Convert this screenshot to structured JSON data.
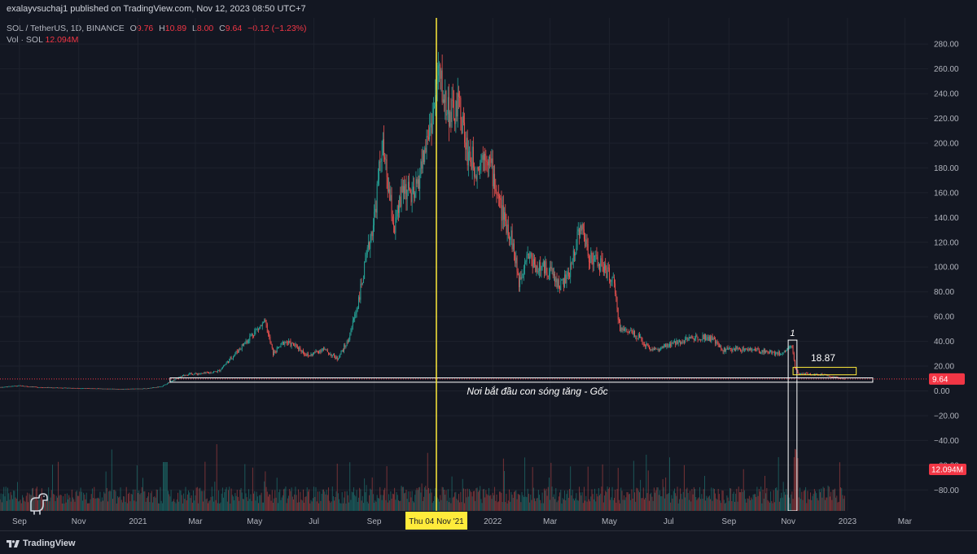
{
  "header": {
    "publisher": "exalayvsuchaj1 published on TradingView.com, Nov 12, 2023 08:50 UTC+7"
  },
  "legend": {
    "symbol": "SOL / TetherUS, 1D, BINANCE",
    "o_label": "O",
    "o_value": "9.76",
    "h_label": "H",
    "h_value": "10.89",
    "l_label": "L",
    "l_value": "8.00",
    "c_label": "C",
    "c_value": "9.64",
    "change": "−0.12 (−1.23%)",
    "vol_label": "Vol · SOL",
    "vol_value": "12.094M"
  },
  "footer": {
    "brand": "TradingView"
  },
  "colors": {
    "background": "#131722",
    "up": "#26a69a",
    "down": "#ef5350",
    "crosshair": "#ffeb3b",
    "box": "#ffffff",
    "price_label": "#f23645"
  },
  "chart_data": {
    "type": "candlestick",
    "y_ticks": [
      "280.00",
      "260.00",
      "240.00",
      "220.00",
      "200.00",
      "180.00",
      "160.00",
      "140.00",
      "120.00",
      "100.00",
      "80.00",
      "60.00",
      "40.00",
      "20.00",
      "0.00",
      "−20.00",
      "−40.00",
      "−60.00",
      "−80.00"
    ],
    "y_tick_values": [
      280,
      260,
      240,
      220,
      200,
      180,
      160,
      140,
      120,
      100,
      80,
      60,
      40,
      20,
      0,
      -20,
      -40,
      -60,
      -80
    ],
    "ylim": [
      -100,
      290
    ],
    "x_ticks": [
      "Sep",
      "Nov",
      "2021",
      "Mar",
      "May",
      "Jul",
      "Sep",
      "2022",
      "Mar",
      "May",
      "Jul",
      "Sep",
      "Nov",
      "2023",
      "Mar"
    ],
    "x_tick_dates": [
      "2020-09-01",
      "2020-11-01",
      "2021-01-01",
      "2021-03-01",
      "2021-05-01",
      "2021-07-01",
      "2021-09-01",
      "2022-01-01",
      "2022-03-01",
      "2022-05-01",
      "2022-07-01",
      "2022-09-01",
      "2022-11-01",
      "2023-01-01",
      "2023-03-01"
    ],
    "x_range": [
      "2020-08-12",
      "2023-03-25"
    ],
    "crosshair_label": "Thu 04 Nov '21",
    "crosshair_date": "2021-11-04",
    "last_price": "9.64",
    "last_price_value": 9.64,
    "last_volume": "12.094M",
    "price_path": [
      [
        "2020-08-12",
        3.0
      ],
      [
        "2020-09-01",
        4.2
      ],
      [
        "2020-09-20",
        3.0
      ],
      [
        "2020-10-15",
        2.5
      ],
      [
        "2020-11-15",
        2.0
      ],
      [
        "2020-12-15",
        1.5
      ],
      [
        "2021-01-10",
        2.0
      ],
      [
        "2021-01-25",
        3.5
      ],
      [
        "2021-02-05",
        8.0
      ],
      [
        "2021-02-20",
        13.5
      ],
      [
        "2021-03-10",
        14.0
      ],
      [
        "2021-03-25",
        16.0
      ],
      [
        "2021-04-05",
        25.0
      ],
      [
        "2021-04-20",
        38.0
      ],
      [
        "2021-05-01",
        48.0
      ],
      [
        "2021-05-12",
        55.0
      ],
      [
        "2021-05-20",
        30.0
      ],
      [
        "2021-06-01",
        40.0
      ],
      [
        "2021-06-15",
        35.0
      ],
      [
        "2021-06-25",
        28.0
      ],
      [
        "2021-07-10",
        34.0
      ],
      [
        "2021-07-25",
        26.0
      ],
      [
        "2021-08-05",
        40.0
      ],
      [
        "2021-08-15",
        70.0
      ],
      [
        "2021-08-25",
        110.0
      ],
      [
        "2021-09-02",
        145.0
      ],
      [
        "2021-09-09",
        200.0
      ],
      [
        "2021-09-15",
        165.0
      ],
      [
        "2021-09-22",
        130.0
      ],
      [
        "2021-10-01",
        165.0
      ],
      [
        "2021-10-12",
        155.0
      ],
      [
        "2021-10-22",
        190.0
      ],
      [
        "2021-11-02",
        230.0
      ],
      [
        "2021-11-06",
        258.0
      ],
      [
        "2021-11-12",
        235.0
      ],
      [
        "2021-11-20",
        222.0
      ],
      [
        "2021-11-28",
        230.0
      ],
      [
        "2021-12-05",
        195.0
      ],
      [
        "2021-12-15",
        180.0
      ],
      [
        "2021-12-25",
        195.0
      ],
      [
        "2022-01-01",
        175.0
      ],
      [
        "2022-01-10",
        145.0
      ],
      [
        "2022-01-20",
        125.0
      ],
      [
        "2022-01-28",
        88.0
      ],
      [
        "2022-02-05",
        112.0
      ],
      [
        "2022-02-15",
        100.0
      ],
      [
        "2022-03-01",
        98.0
      ],
      [
        "2022-03-10",
        85.0
      ],
      [
        "2022-03-20",
        92.0
      ],
      [
        "2022-04-01",
        135.0
      ],
      [
        "2022-04-10",
        110.0
      ],
      [
        "2022-04-25",
        100.0
      ],
      [
        "2022-05-05",
        88.0
      ],
      [
        "2022-05-12",
        50.0
      ],
      [
        "2022-05-25",
        48.0
      ],
      [
        "2022-06-10",
        35.0
      ],
      [
        "2022-06-20",
        33.0
      ],
      [
        "2022-07-05",
        38.0
      ],
      [
        "2022-07-20",
        42.0
      ],
      [
        "2022-08-05",
        44.0
      ],
      [
        "2022-08-15",
        42.0
      ],
      [
        "2022-08-25",
        33.0
      ],
      [
        "2022-09-10",
        34.0
      ],
      [
        "2022-09-25",
        33.0
      ],
      [
        "2022-10-10",
        32.0
      ],
      [
        "2022-10-25",
        30.0
      ],
      [
        "2022-11-05",
        37.0
      ],
      [
        "2022-11-08",
        18.0
      ],
      [
        "2022-11-12",
        14.0
      ],
      [
        "2022-11-25",
        13.5
      ],
      [
        "2022-12-10",
        13.0
      ],
      [
        "2022-12-20",
        11.0
      ],
      [
        "2022-12-29",
        9.64
      ]
    ],
    "annotations": [
      {
        "type": "box",
        "label": "Nơi bắt đầu con sóng tăng - Gốc",
        "from": "2021-02-03",
        "to": "2023-01-27",
        "ymin": 7.0,
        "ymax": 10.5,
        "color": "#ffffff"
      },
      {
        "type": "box",
        "label": "1",
        "from": "2022-11-01",
        "to": "2022-11-10",
        "ymin": -100,
        "ymax": 41,
        "color": "#ffffff"
      },
      {
        "type": "box",
        "label": "18.87",
        "from": "2022-11-06",
        "to": "2023-01-10",
        "ymin": 13.0,
        "ymax": 19.0,
        "color": "#ffeb3b"
      }
    ]
  }
}
